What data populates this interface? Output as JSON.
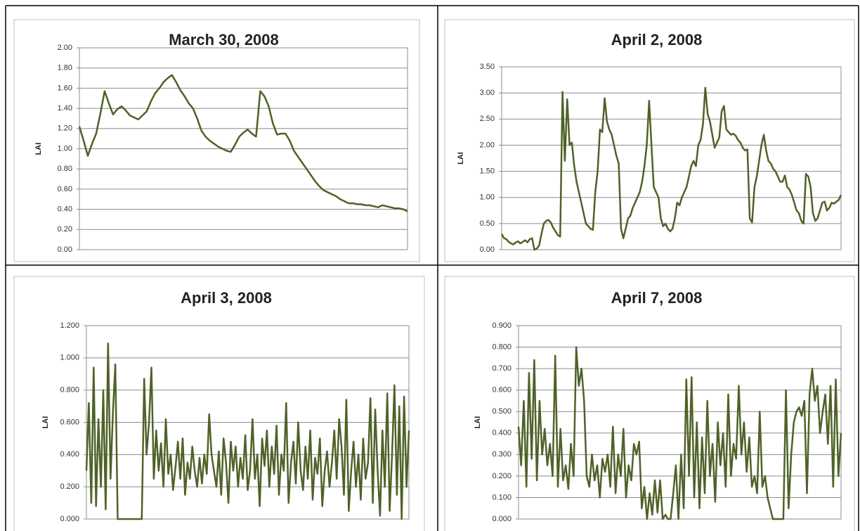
{
  "chart_data": [
    {
      "type": "line",
      "title": "March 30, 2008",
      "y_label": "LAI",
      "color": "#4f6228",
      "grid": true,
      "ylim": [
        0,
        2
      ],
      "yticks": [
        {
          "value": 0,
          "label": "0.00"
        },
        {
          "value": 0.2,
          "label": "0.20"
        },
        {
          "value": 0.4,
          "label": "0.40"
        },
        {
          "value": 0.6,
          "label": "0.60"
        },
        {
          "value": 0.8,
          "label": "0.80"
        },
        {
          "value": 1,
          "label": "1.00"
        },
        {
          "value": 1.2,
          "label": "1.20"
        },
        {
          "value": 1.4,
          "label": "1.40"
        },
        {
          "value": 1.6,
          "label": "1.60"
        },
        {
          "value": 1.8,
          "label": "1.80"
        },
        {
          "value": 2,
          "label": "2.00"
        }
      ],
      "values": [
        1.22,
        1.08,
        0.93,
        1.05,
        1.15,
        1.35,
        1.57,
        1.45,
        1.34,
        1.39,
        1.42,
        1.38,
        1.33,
        1.31,
        1.29,
        1.33,
        1.37,
        1.47,
        1.55,
        1.6,
        1.66,
        1.7,
        1.73,
        1.66,
        1.58,
        1.52,
        1.45,
        1.4,
        1.3,
        1.18,
        1.12,
        1.08,
        1.05,
        1.02,
        1.0,
        0.98,
        0.97,
        1.04,
        1.12,
        1.16,
        1.19,
        1.15,
        1.12,
        1.57,
        1.52,
        1.42,
        1.25,
        1.14,
        1.15,
        1.15,
        1.08,
        0.98,
        0.92,
        0.86,
        0.8,
        0.74,
        0.68,
        0.63,
        0.59,
        0.57,
        0.55,
        0.53,
        0.5,
        0.48,
        0.46,
        0.46,
        0.45,
        0.45,
        0.44,
        0.44,
        0.43,
        0.42,
        0.44,
        0.43,
        0.42,
        0.41,
        0.41,
        0.4,
        0.38
      ]
    },
    {
      "type": "line",
      "title": "April 2, 2008",
      "y_label": "LAI",
      "color": "#4f6228",
      "grid": true,
      "ylim": [
        0,
        3.5
      ],
      "yticks": [
        {
          "value": 0,
          "label": "0.00"
        },
        {
          "value": 0.5,
          "label": "0.50"
        },
        {
          "value": 1,
          "label": "1.00"
        },
        {
          "value": 1.5,
          "label": "1.50"
        },
        {
          "value": 2,
          "label": "2.00"
        },
        {
          "value": 2.5,
          "label": "2.50"
        },
        {
          "value": 3,
          "label": "3.00"
        },
        {
          "value": 3.5,
          "label": "3.50"
        }
      ],
      "values": [
        0.3,
        0.22,
        0.2,
        0.15,
        0.12,
        0.1,
        0.14,
        0.16,
        0.12,
        0.15,
        0.18,
        0.14,
        0.2,
        0.22,
        0.0,
        0.02,
        0.08,
        0.3,
        0.5,
        0.55,
        0.57,
        0.52,
        0.42,
        0.35,
        0.28,
        0.25,
        3.02,
        1.7,
        2.88,
        2.0,
        2.05,
        1.6,
        1.3,
        1.1,
        0.9,
        0.7,
        0.5,
        0.45,
        0.4,
        0.38,
        1.1,
        1.5,
        2.3,
        2.25,
        2.9,
        2.45,
        2.3,
        2.2,
        2.0,
        1.8,
        1.65,
        0.4,
        0.22,
        0.4,
        0.6,
        0.65,
        0.8,
        0.9,
        1.0,
        1.1,
        1.3,
        1.6,
        2.0,
        2.85,
        2.0,
        1.2,
        1.1,
        1.0,
        0.6,
        0.45,
        0.5,
        0.4,
        0.35,
        0.4,
        0.6,
        0.9,
        0.85,
        1.0,
        1.1,
        1.2,
        1.4,
        1.6,
        1.7,
        1.6,
        2.0,
        2.1,
        2.4,
        3.1,
        2.6,
        2.45,
        2.2,
        1.95,
        2.05,
        2.15,
        2.65,
        2.75,
        2.3,
        2.25,
        2.2,
        2.22,
        2.18,
        2.1,
        2.05,
        1.95,
        1.9,
        1.92,
        0.6,
        0.52,
        1.2,
        1.4,
        1.7,
        2.0,
        2.2,
        1.9,
        1.7,
        1.65,
        1.55,
        1.5,
        1.4,
        1.3,
        1.3,
        1.42,
        1.2,
        1.15,
        1.05,
        0.9,
        0.75,
        0.7,
        0.55,
        0.5,
        1.45,
        1.4,
        1.2,
        0.7,
        0.55,
        0.6,
        0.75,
        0.9,
        0.92,
        0.75,
        0.8,
        0.9,
        0.88,
        0.92,
        0.95,
        1.05
      ]
    },
    {
      "type": "line",
      "title": "April 3, 2008",
      "y_label": "LAI",
      "color": "#4f6228",
      "grid": true,
      "ylim": [
        0,
        1.2
      ],
      "yticks": [
        {
          "value": 0,
          "label": "0.000"
        },
        {
          "value": 0.2,
          "label": "0.200"
        },
        {
          "value": 0.4,
          "label": "0.400"
        },
        {
          "value": 0.6,
          "label": "0.600"
        },
        {
          "value": 0.8,
          "label": "0.800"
        },
        {
          "value": 1,
          "label": "1.000"
        },
        {
          "value": 1.2,
          "label": "1.200"
        }
      ],
      "values": [
        0.3,
        0.72,
        0.1,
        0.94,
        0.08,
        0.62,
        0.2,
        0.8,
        0.06,
        1.09,
        0.25,
        0.66,
        0.96,
        0.0,
        0.0,
        0.0,
        0.0,
        0.0,
        0.0,
        0.0,
        0.0,
        0.0,
        0.0,
        0.0,
        0.87,
        0.4,
        0.6,
        0.94,
        0.25,
        0.55,
        0.3,
        0.47,
        0.2,
        0.62,
        0.28,
        0.4,
        0.18,
        0.32,
        0.48,
        0.25,
        0.5,
        0.15,
        0.35,
        0.25,
        0.45,
        0.3,
        0.2,
        0.38,
        0.22,
        0.4,
        0.28,
        0.65,
        0.4,
        0.3,
        0.2,
        0.42,
        0.15,
        0.5,
        0.35,
        0.1,
        0.48,
        0.3,
        0.45,
        0.2,
        0.38,
        0.25,
        0.52,
        0.18,
        0.3,
        0.62,
        0.25,
        0.4,
        0.08,
        0.5,
        0.33,
        0.55,
        0.2,
        0.45,
        0.28,
        0.58,
        0.15,
        0.4,
        0.3,
        0.72,
        0.1,
        0.35,
        0.48,
        0.22,
        0.6,
        0.3,
        0.18,
        0.45,
        0.25,
        0.55,
        0.12,
        0.38,
        0.28,
        0.5,
        0.08,
        0.3,
        0.42,
        0.2,
        0.35,
        0.55,
        0.25,
        0.62,
        0.45,
        0.15,
        0.74,
        0.05,
        0.3,
        0.48,
        0.2,
        0.4,
        0.12,
        0.5,
        0.25,
        0.35,
        0.75,
        0.1,
        0.68,
        0.3,
        0.02,
        0.55,
        0.2,
        0.78,
        0.05,
        0.4,
        0.83,
        0.15,
        0.7,
        0.0,
        0.76,
        0.2,
        0.55
      ]
    },
    {
      "type": "line",
      "title": "April 7, 2008",
      "y_label": "LAI",
      "color": "#4f6228",
      "grid": true,
      "ylim": [
        0,
        0.9
      ],
      "yticks": [
        {
          "value": 0,
          "label": "0.000"
        },
        {
          "value": 0.1,
          "label": "0.100"
        },
        {
          "value": 0.2,
          "label": "0.200"
        },
        {
          "value": 0.3,
          "label": "0.300"
        },
        {
          "value": 0.4,
          "label": "0.400"
        },
        {
          "value": 0.5,
          "label": "0.500"
        },
        {
          "value": 0.6,
          "label": "0.600"
        },
        {
          "value": 0.7,
          "label": "0.700"
        },
        {
          "value": 0.8,
          "label": "0.800"
        },
        {
          "value": 0.9,
          "label": "0.900"
        }
      ],
      "values": [
        0.43,
        0.25,
        0.55,
        0.15,
        0.68,
        0.28,
        0.74,
        0.18,
        0.55,
        0.3,
        0.42,
        0.25,
        0.35,
        0.2,
        0.76,
        0.15,
        0.42,
        0.18,
        0.25,
        0.14,
        0.35,
        0.2,
        0.8,
        0.62,
        0.7,
        0.55,
        0.2,
        0.15,
        0.3,
        0.18,
        0.25,
        0.1,
        0.28,
        0.22,
        0.3,
        0.15,
        0.43,
        0.12,
        0.3,
        0.2,
        0.42,
        0.1,
        0.25,
        0.18,
        0.35,
        0.3,
        0.36,
        0.05,
        0.15,
        0.0,
        0.12,
        0.02,
        0.18,
        0.03,
        0.18,
        0.0,
        0.02,
        0.0,
        0.0,
        0.12,
        0.25,
        0.0,
        0.3,
        0.05,
        0.65,
        0.2,
        0.66,
        0.1,
        0.45,
        0.05,
        0.38,
        0.12,
        0.55,
        0.2,
        0.35,
        0.08,
        0.45,
        0.25,
        0.4,
        0.15,
        0.58,
        0.2,
        0.35,
        0.28,
        0.62,
        0.3,
        0.45,
        0.22,
        0.38,
        0.15,
        0.2,
        0.12,
        0.5,
        0.15,
        0.2,
        0.1,
        0.05,
        0.0,
        0.0,
        0.0,
        0.0,
        0.0,
        0.6,
        0.05,
        0.3,
        0.45,
        0.5,
        0.52,
        0.48,
        0.55,
        0.12,
        0.58,
        0.7,
        0.55,
        0.62,
        0.4,
        0.5,
        0.58,
        0.35,
        0.62,
        0.15,
        0.65,
        0.2,
        0.4
      ]
    }
  ]
}
